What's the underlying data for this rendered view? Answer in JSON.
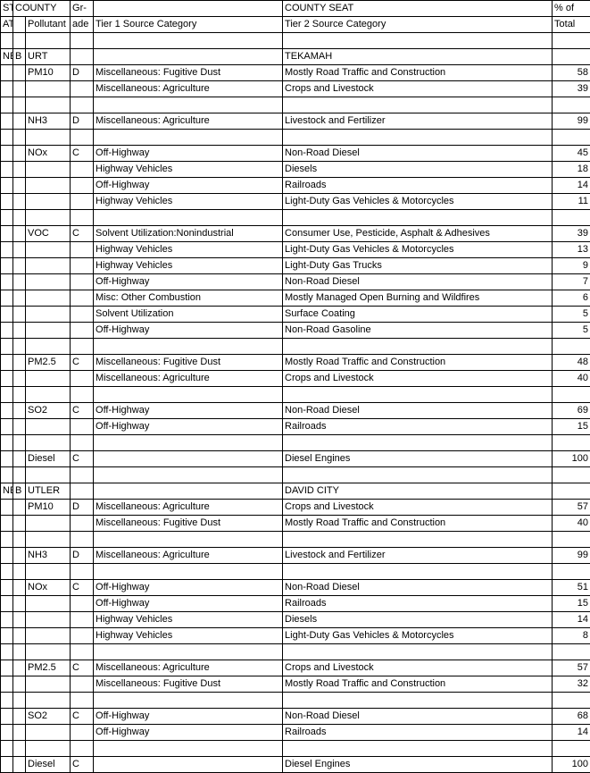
{
  "colors": {
    "border": "#000000",
    "text": "#000000",
    "bg": "#ffffff"
  },
  "fontsize": 11,
  "columns": {
    "c0_h1": "ST-",
    "c0_h2": "ATE",
    "c1_h1": "COUNTY",
    "c1_h2": "",
    "c2_h2": "Pollutant",
    "c3_h1": "Gr-",
    "c3_h2": "ade",
    "c4_h2": "Tier 1 Source Category",
    "c5_h1": "COUNTY SEAT",
    "c5_h2": "Tier 2 Source Category",
    "c6_h1": "% of",
    "c6_h2": "Total"
  },
  "rows": [
    {
      "t": "blank"
    },
    {
      "t": "county",
      "c0": "NE",
      "c1": "B",
      "c2": "URT",
      "c5": "TEKAMAH"
    },
    {
      "t": "d",
      "c2": "PM10",
      "c3": "D",
      "c4": "Miscellaneous: Fugitive Dust",
      "c5": "Mostly Road Traffic and Construction",
      "c6": "58"
    },
    {
      "t": "d",
      "c4": "Miscellaneous: Agriculture",
      "c5": "Crops and Livestock",
      "c6": "39"
    },
    {
      "t": "blank"
    },
    {
      "t": "d",
      "c2": "NH3",
      "c3": "D",
      "c4": "Miscellaneous: Agriculture",
      "c5": "Livestock and Fertilizer",
      "c6": "99"
    },
    {
      "t": "blank"
    },
    {
      "t": "d",
      "c2": "NOx",
      "c3": "C",
      "c4": "Off-Highway",
      "c5": "Non-Road Diesel",
      "c6": "45"
    },
    {
      "t": "d",
      "c4": "Highway Vehicles",
      "c5": "Diesels",
      "c6": "18"
    },
    {
      "t": "d",
      "c4": "Off-Highway",
      "c5": "Railroads",
      "c6": "14"
    },
    {
      "t": "d",
      "c4": "Highway Vehicles",
      "c5": "Light-Duty Gas Vehicles & Motorcycles",
      "c6": "11"
    },
    {
      "t": "blank"
    },
    {
      "t": "d",
      "c2": "VOC",
      "c3": "C",
      "c4": "Solvent Utilization:Nonindustrial",
      "c5": "Consumer Use, Pesticide, Asphalt & Adhesives",
      "c6": "39"
    },
    {
      "t": "d",
      "c4": "Highway Vehicles",
      "c5": "Light-Duty Gas Vehicles & Motorcycles",
      "c6": "13"
    },
    {
      "t": "d",
      "c4": "Highway Vehicles",
      "c5": "Light-Duty Gas Trucks",
      "c6": "9"
    },
    {
      "t": "d",
      "c4": "Off-Highway",
      "c5": "Non-Road Diesel",
      "c6": "7"
    },
    {
      "t": "d",
      "c4": "Misc: Other Combustion",
      "c5": "Mostly Managed Open Burning and Wildfires",
      "c6": "6"
    },
    {
      "t": "d",
      "c4": "Solvent Utilization",
      "c5": "Surface Coating",
      "c6": "5"
    },
    {
      "t": "d",
      "c4": "Off-Highway",
      "c5": "Non-Road Gasoline",
      "c6": "5"
    },
    {
      "t": "blank"
    },
    {
      "t": "d",
      "c2": "PM2.5",
      "c3": "C",
      "c4": "Miscellaneous: Fugitive Dust",
      "c5": "Mostly Road Traffic and Construction",
      "c6": "48"
    },
    {
      "t": "d",
      "c4": "Miscellaneous: Agriculture",
      "c5": "Crops and Livestock",
      "c6": "40"
    },
    {
      "t": "blank"
    },
    {
      "t": "d",
      "c2": "SO2",
      "c3": "C",
      "c4": "Off-Highway",
      "c5": "Non-Road Diesel",
      "c6": "69"
    },
    {
      "t": "d",
      "c4": "Off-Highway",
      "c5": "Railroads",
      "c6": "15"
    },
    {
      "t": "blank"
    },
    {
      "t": "d",
      "c2": "Diesel",
      "c3": "C",
      "c5": "Diesel Engines",
      "c6": "100"
    },
    {
      "t": "blank"
    },
    {
      "t": "county",
      "c0": "NE",
      "c1": "B",
      "c2": "UTLER",
      "c5": "DAVID CITY"
    },
    {
      "t": "d",
      "c2": "PM10",
      "c3": "D",
      "c4": "Miscellaneous: Agriculture",
      "c5": "Crops and Livestock",
      "c6": "57"
    },
    {
      "t": "d",
      "c4": "Miscellaneous: Fugitive Dust",
      "c5": "Mostly Road Traffic and Construction",
      "c6": "40"
    },
    {
      "t": "blank"
    },
    {
      "t": "d",
      "c2": "NH3",
      "c3": "D",
      "c4": "Miscellaneous: Agriculture",
      "c5": "Livestock and Fertilizer",
      "c6": "99"
    },
    {
      "t": "blank"
    },
    {
      "t": "d",
      "c2": "NOx",
      "c3": "C",
      "c4": "Off-Highway",
      "c5": "Non-Road Diesel",
      "c6": "51"
    },
    {
      "t": "d",
      "c4": "Off-Highway",
      "c5": "Railroads",
      "c6": "15"
    },
    {
      "t": "d",
      "c4": "Highway Vehicles",
      "c5": "Diesels",
      "c6": "14"
    },
    {
      "t": "d",
      "c4": "Highway Vehicles",
      "c5": "Light-Duty Gas Vehicles & Motorcycles",
      "c6": "8"
    },
    {
      "t": "blank"
    },
    {
      "t": "d",
      "c2": "PM2.5",
      "c3": "C",
      "c4": "Miscellaneous: Agriculture",
      "c5": "Crops and Livestock",
      "c6": "57"
    },
    {
      "t": "d",
      "c4": "Miscellaneous: Fugitive Dust",
      "c5": "Mostly Road Traffic and Construction",
      "c6": "32"
    },
    {
      "t": "blank"
    },
    {
      "t": "d",
      "c2": "SO2",
      "c3": "C",
      "c4": "Off-Highway",
      "c5": "Non-Road Diesel",
      "c6": "68"
    },
    {
      "t": "d",
      "c4": "Off-Highway",
      "c5": "Railroads",
      "c6": "14"
    },
    {
      "t": "blank"
    },
    {
      "t": "d",
      "c2": "Diesel",
      "c3": "C",
      "c5": "Diesel Engines",
      "c6": "100"
    }
  ]
}
